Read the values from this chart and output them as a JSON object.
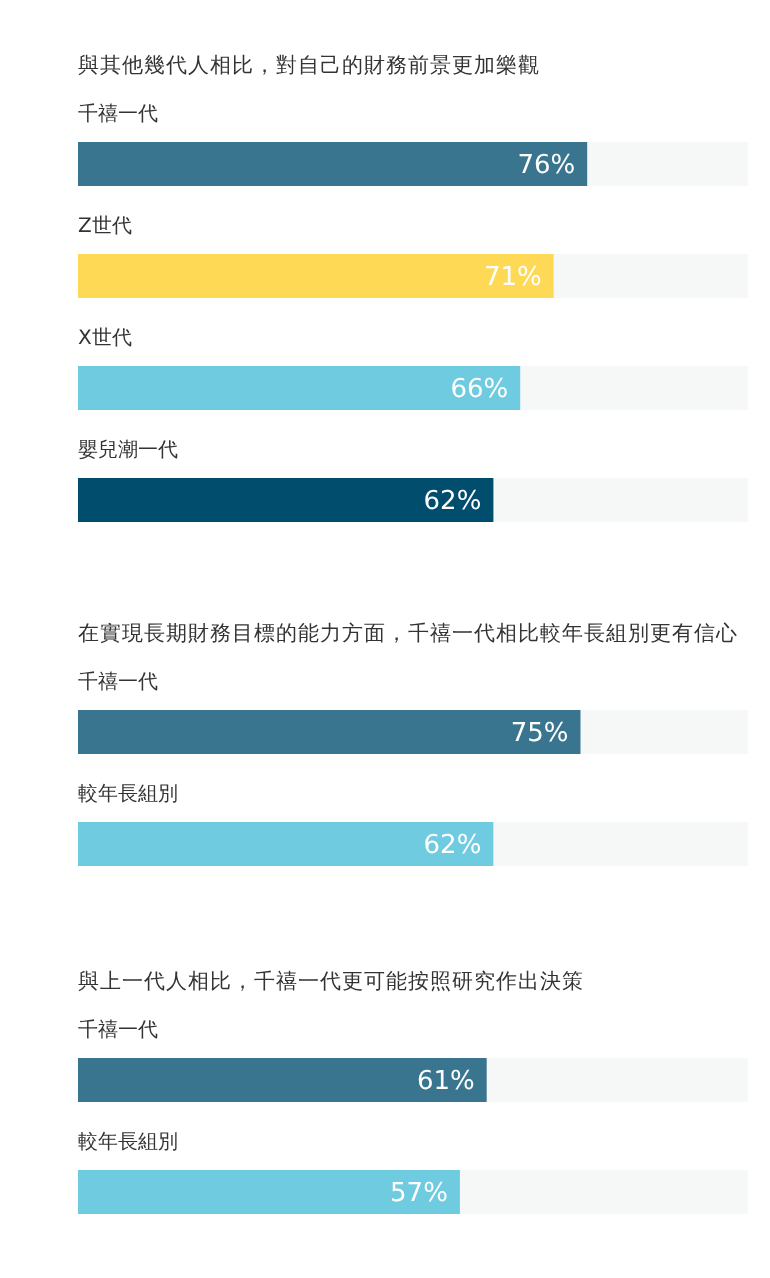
{
  "chart_data": [
    {
      "type": "bar",
      "orientation": "horizontal",
      "title": "與其他幾代人相比，對自己的財務前景更加樂觀",
      "categories": [
        "千禧一代",
        "Z世代",
        "X世代",
        "嬰兒潮一代"
      ],
      "values": [
        76,
        71,
        66,
        62
      ],
      "colors": [
        "#3a758f",
        "#fed955",
        "#6fcbdf",
        "#004d6e"
      ],
      "value_labels": [
        "76%",
        "71%",
        "66%",
        "62%"
      ],
      "xlim": [
        0,
        100
      ]
    },
    {
      "type": "bar",
      "orientation": "horizontal",
      "title": "在實現長期財務目標的能力方面，千禧一代相比較年長組別更有信心",
      "categories": [
        "千禧一代",
        "較年長組別"
      ],
      "values": [
        75,
        62
      ],
      "colors": [
        "#3a758f",
        "#6fcbdf"
      ],
      "value_labels": [
        "75%",
        "62%"
      ],
      "xlim": [
        0,
        100
      ]
    },
    {
      "type": "bar",
      "orientation": "horizontal",
      "title": "與上一代人相比，千禧一代更可能按照研究作出決策",
      "categories": [
        "千禧一代",
        "較年長組別"
      ],
      "values": [
        61,
        57
      ],
      "colors": [
        "#3a758f",
        "#6fcbdf"
      ],
      "value_labels": [
        "61%",
        "57%"
      ],
      "xlim": [
        0,
        100
      ]
    }
  ]
}
